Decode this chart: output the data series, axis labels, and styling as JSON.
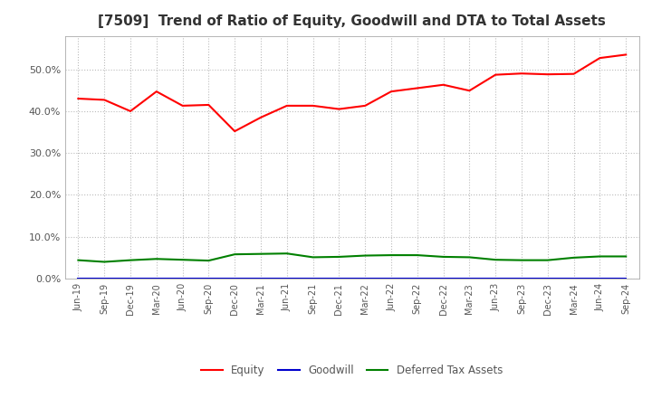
{
  "title": "[7509]  Trend of Ratio of Equity, Goodwill and DTA to Total Assets",
  "x_labels": [
    "Jun-19",
    "Sep-19",
    "Dec-19",
    "Mar-20",
    "Jun-20",
    "Sep-20",
    "Dec-20",
    "Mar-21",
    "Jun-21",
    "Sep-21",
    "Dec-21",
    "Mar-22",
    "Jun-22",
    "Sep-22",
    "Dec-22",
    "Mar-23",
    "Jun-23",
    "Sep-23",
    "Dec-23",
    "Mar-24",
    "Jun-24",
    "Sep-24"
  ],
  "equity": [
    0.43,
    0.427,
    0.4,
    0.447,
    0.413,
    0.415,
    0.352,
    0.385,
    0.413,
    0.413,
    0.405,
    0.413,
    0.447,
    0.455,
    0.463,
    0.449,
    0.487,
    0.49,
    0.488,
    0.489,
    0.527,
    0.535
  ],
  "goodwill": [
    0.0,
    0.0,
    0.0,
    0.0,
    0.0,
    0.0,
    0.0,
    0.0,
    0.0,
    0.0,
    0.0,
    0.0,
    0.0,
    0.0,
    0.0,
    0.0,
    0.0,
    0.0,
    0.0,
    0.0,
    0.0,
    0.0
  ],
  "dta": [
    0.044,
    0.04,
    0.044,
    0.047,
    0.045,
    0.043,
    0.058,
    0.059,
    0.06,
    0.051,
    0.052,
    0.055,
    0.056,
    0.056,
    0.052,
    0.051,
    0.045,
    0.044,
    0.044,
    0.05,
    0.053,
    0.053
  ],
  "equity_color": "#ff0000",
  "goodwill_color": "#0000cd",
  "dta_color": "#008000",
  "background_color": "#ffffff",
  "grid_color": "#bbbbbb",
  "ylim": [
    0.0,
    0.58
  ],
  "yticks": [
    0.0,
    0.1,
    0.2,
    0.3,
    0.4,
    0.5
  ],
  "title_fontsize": 11,
  "title_color": "#333333",
  "tick_color": "#555555",
  "legend_labels": [
    "Equity",
    "Goodwill",
    "Deferred Tax Assets"
  ],
  "linewidth": 1.5
}
